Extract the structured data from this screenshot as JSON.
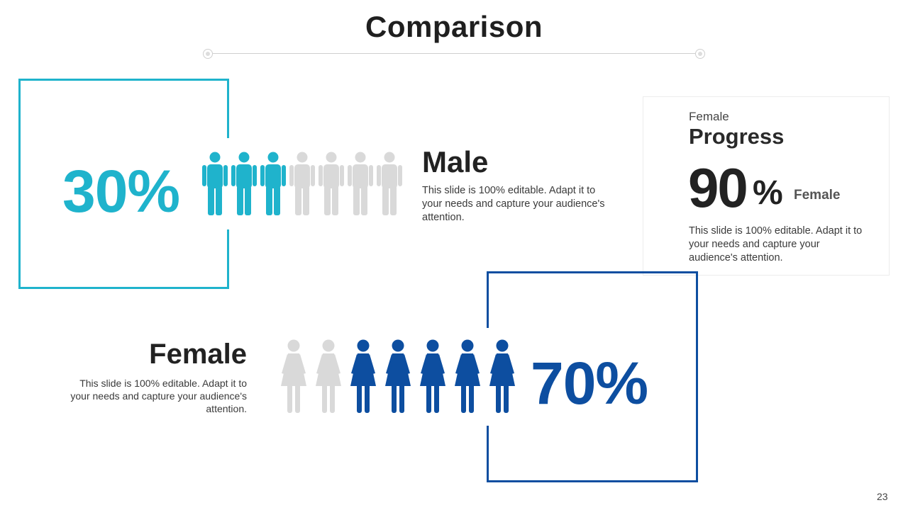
{
  "slide": {
    "title": "Comparison",
    "page_number": "23"
  },
  "male": {
    "percent": "30%",
    "heading": "Male",
    "body": "This slide is 100% editable. Adapt it to your needs and capture your audience's attention.",
    "icons_total": 7,
    "icons_filled": 3,
    "color": "#1fb3cc",
    "inactive_color": "#d9d9d9"
  },
  "female": {
    "percent": "70%",
    "heading": "Female",
    "body": "This slide is 100% editable. Adapt it to your needs and capture your audience's attention.",
    "icons_total": 7,
    "icons_filled": 5,
    "color": "#0d4ea0",
    "inactive_color": "#d9d9d9"
  },
  "progress_card": {
    "subtitle": "Female",
    "title": "Progress",
    "value": "90",
    "unit": "%",
    "label": "Female",
    "body": "This slide is 100% editable. Adapt it to your needs and capture your audience's attention."
  }
}
